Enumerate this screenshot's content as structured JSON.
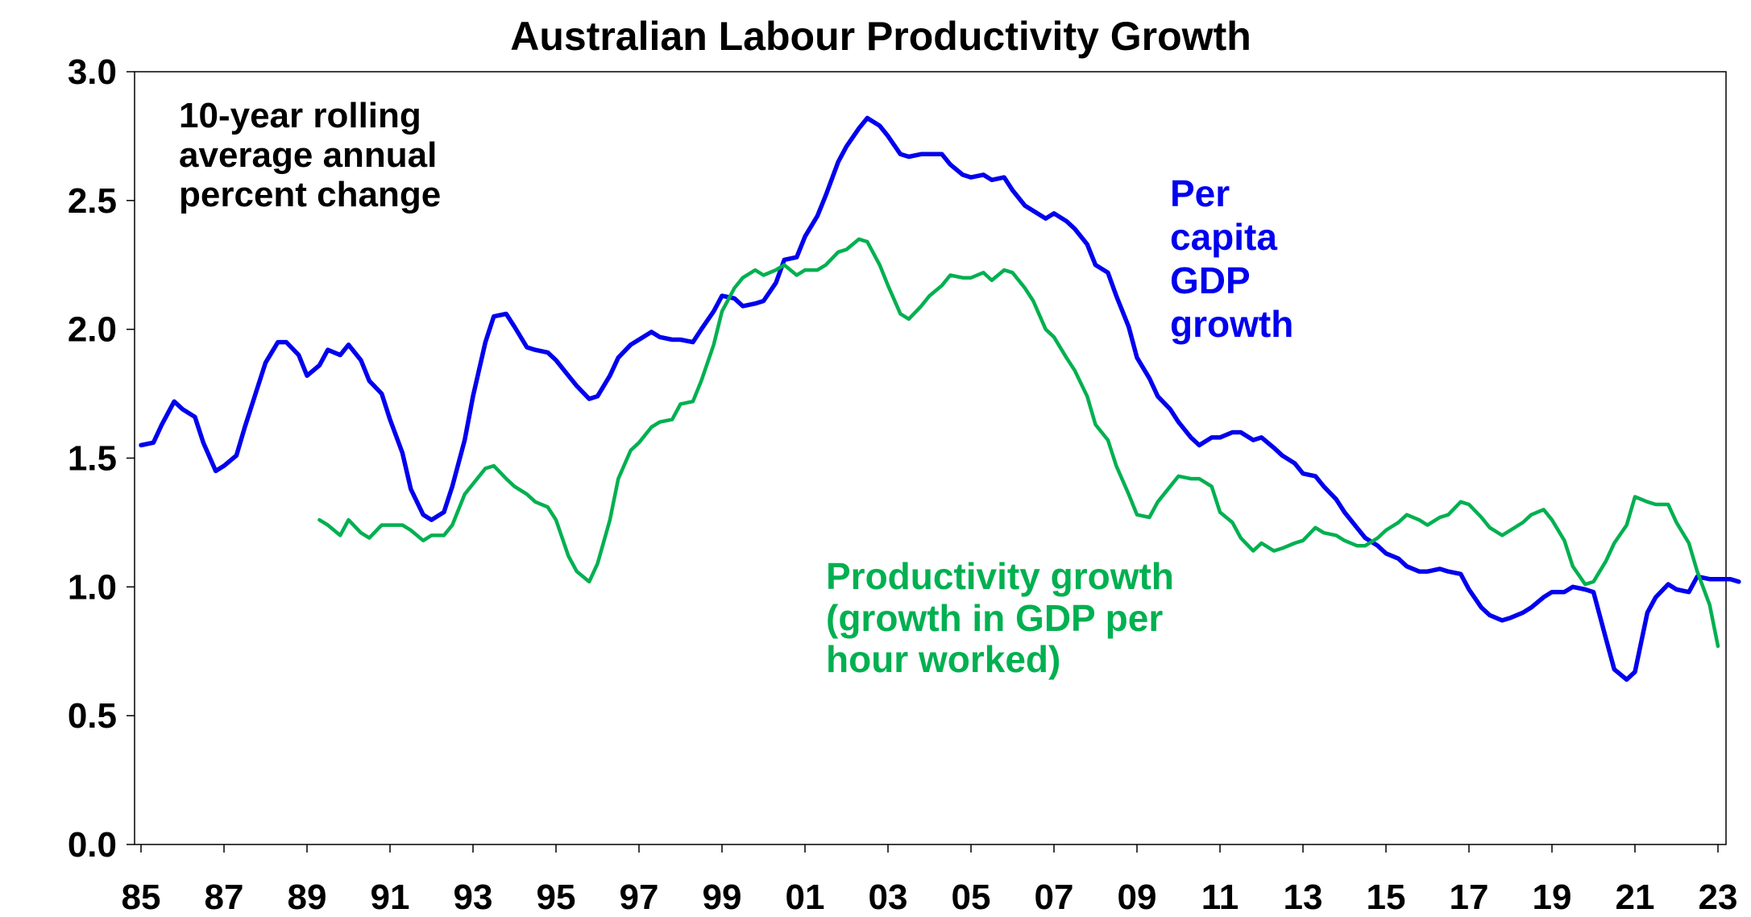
{
  "chart_data": {
    "type": "line",
    "title": "Australian Labour Productivity Growth",
    "annotation": [
      "10-year rolling",
      "average annual",
      "percent change"
    ],
    "xlabel": "",
    "ylabel": "",
    "xlim": [
      1985,
      2024.3
    ],
    "ylim": [
      0,
      3.0
    ],
    "x_ticks": [
      1985,
      1987,
      1989,
      1991,
      1993,
      1995,
      1997,
      1999,
      2001,
      2003,
      2005,
      2007,
      2009,
      2011,
      2013,
      2015,
      2017,
      2019,
      2021,
      2023
    ],
    "x_tick_labels": [
      "85",
      "87",
      "89",
      "91",
      "93",
      "95",
      "97",
      "99",
      "01",
      "03",
      "05",
      "07",
      "09",
      "11",
      "13",
      "15",
      "17",
      "19",
      "21",
      "23"
    ],
    "y_ticks": [
      0,
      0.5,
      1.0,
      1.5,
      2.0,
      2.5,
      3.0
    ],
    "y_tick_labels": [
      "0.0",
      "0.5",
      "1.0",
      "1.5",
      "2.0",
      "2.5",
      "3.0"
    ],
    "grid": false,
    "legend": "none",
    "series": [
      {
        "name": "Per capita GDP growth",
        "label_lines": [
          "Per",
          "capita",
          "GDP",
          "growth"
        ],
        "color": "#0000EE",
        "points": [
          [
            1985.0,
            1.55
          ],
          [
            1985.3,
            1.56
          ],
          [
            1985.5,
            1.63
          ],
          [
            1985.8,
            1.72
          ],
          [
            1986.0,
            1.69
          ],
          [
            1986.3,
            1.66
          ],
          [
            1986.5,
            1.56
          ],
          [
            1986.8,
            1.45
          ],
          [
            1987.0,
            1.47
          ],
          [
            1987.3,
            1.51
          ],
          [
            1987.5,
            1.62
          ],
          [
            1987.8,
            1.77
          ],
          [
            1988.0,
            1.87
          ],
          [
            1988.3,
            1.95
          ],
          [
            1988.5,
            1.95
          ],
          [
            1988.8,
            1.9
          ],
          [
            1989.0,
            1.82
          ],
          [
            1989.3,
            1.86
          ],
          [
            1989.5,
            1.92
          ],
          [
            1989.8,
            1.9
          ],
          [
            1990.0,
            1.94
          ],
          [
            1990.3,
            1.88
          ],
          [
            1990.5,
            1.8
          ],
          [
            1990.8,
            1.75
          ],
          [
            1991.0,
            1.65
          ],
          [
            1991.3,
            1.52
          ],
          [
            1991.5,
            1.38
          ],
          [
            1991.8,
            1.28
          ],
          [
            1992.0,
            1.26
          ],
          [
            1992.3,
            1.29
          ],
          [
            1992.5,
            1.39
          ],
          [
            1992.8,
            1.57
          ],
          [
            1993.0,
            1.74
          ],
          [
            1993.3,
            1.95
          ],
          [
            1993.5,
            2.05
          ],
          [
            1993.8,
            2.06
          ],
          [
            1994.0,
            2.01
          ],
          [
            1994.3,
            1.93
          ],
          [
            1994.5,
            1.92
          ],
          [
            1994.8,
            1.91
          ],
          [
            1995.0,
            1.88
          ],
          [
            1995.3,
            1.82
          ],
          [
            1995.5,
            1.78
          ],
          [
            1995.8,
            1.73
          ],
          [
            1996.0,
            1.74
          ],
          [
            1996.3,
            1.82
          ],
          [
            1996.5,
            1.89
          ],
          [
            1996.8,
            1.94
          ],
          [
            1997.0,
            1.96
          ],
          [
            1997.3,
            1.99
          ],
          [
            1997.5,
            1.97
          ],
          [
            1997.8,
            1.96
          ],
          [
            1998.0,
            1.96
          ],
          [
            1998.3,
            1.95
          ],
          [
            1998.5,
            2.0
          ],
          [
            1998.8,
            2.07
          ],
          [
            1999.0,
            2.13
          ],
          [
            1999.3,
            2.12
          ],
          [
            1999.5,
            2.09
          ],
          [
            1999.8,
            2.1
          ],
          [
            2000.0,
            2.11
          ],
          [
            2000.3,
            2.18
          ],
          [
            2000.5,
            2.27
          ],
          [
            2000.8,
            2.28
          ],
          [
            2001.0,
            2.36
          ],
          [
            2001.3,
            2.44
          ],
          [
            2001.5,
            2.52
          ],
          [
            2001.8,
            2.65
          ],
          [
            2002.0,
            2.71
          ],
          [
            2002.3,
            2.78
          ],
          [
            2002.5,
            2.82
          ],
          [
            2002.8,
            2.79
          ],
          [
            2003.0,
            2.75
          ],
          [
            2003.3,
            2.68
          ],
          [
            2003.5,
            2.67
          ],
          [
            2003.8,
            2.68
          ],
          [
            2004.0,
            2.68
          ],
          [
            2004.3,
            2.68
          ],
          [
            2004.5,
            2.64
          ],
          [
            2004.8,
            2.6
          ],
          [
            2005.0,
            2.59
          ],
          [
            2005.3,
            2.6
          ],
          [
            2005.5,
            2.58
          ],
          [
            2005.8,
            2.59
          ],
          [
            2006.0,
            2.54
          ],
          [
            2006.3,
            2.48
          ],
          [
            2006.5,
            2.46
          ],
          [
            2006.8,
            2.43
          ],
          [
            2007.0,
            2.45
          ],
          [
            2007.3,
            2.42
          ],
          [
            2007.5,
            2.39
          ],
          [
            2007.8,
            2.33
          ],
          [
            2008.0,
            2.25
          ],
          [
            2008.3,
            2.22
          ],
          [
            2008.5,
            2.13
          ],
          [
            2008.8,
            2.01
          ],
          [
            2009.0,
            1.89
          ],
          [
            2009.3,
            1.81
          ],
          [
            2009.5,
            1.74
          ],
          [
            2009.8,
            1.69
          ],
          [
            2010.0,
            1.64
          ],
          [
            2010.3,
            1.58
          ],
          [
            2010.5,
            1.55
          ],
          [
            2010.8,
            1.58
          ],
          [
            2011.0,
            1.58
          ],
          [
            2011.3,
            1.6
          ],
          [
            2011.5,
            1.6
          ],
          [
            2011.8,
            1.57
          ],
          [
            2012.0,
            1.58
          ],
          [
            2012.3,
            1.54
          ],
          [
            2012.5,
            1.51
          ],
          [
            2012.8,
            1.48
          ],
          [
            2013.0,
            1.44
          ],
          [
            2013.3,
            1.43
          ],
          [
            2013.5,
            1.39
          ],
          [
            2013.8,
            1.34
          ],
          [
            2014.0,
            1.29
          ],
          [
            2014.3,
            1.23
          ],
          [
            2014.5,
            1.19
          ],
          [
            2014.8,
            1.16
          ],
          [
            2015.0,
            1.13
          ],
          [
            2015.3,
            1.11
          ],
          [
            2015.5,
            1.08
          ],
          [
            2015.8,
            1.06
          ],
          [
            2016.0,
            1.06
          ],
          [
            2016.3,
            1.07
          ],
          [
            2016.5,
            1.06
          ],
          [
            2016.8,
            1.05
          ],
          [
            2017.0,
            0.99
          ],
          [
            2017.3,
            0.92
          ],
          [
            2017.5,
            0.89
          ],
          [
            2017.8,
            0.87
          ],
          [
            2018.0,
            0.88
          ],
          [
            2018.3,
            0.9
          ],
          [
            2018.5,
            0.92
          ],
          [
            2018.8,
            0.96
          ],
          [
            2019.0,
            0.98
          ],
          [
            2019.3,
            0.98
          ],
          [
            2019.5,
            1.0
          ],
          [
            2019.8,
            0.99
          ],
          [
            2020.0,
            0.98
          ],
          [
            2020.3,
            0.8
          ],
          [
            2020.5,
            0.68
          ],
          [
            2020.8,
            0.64
          ],
          [
            2021.0,
            0.67
          ],
          [
            2021.3,
            0.9
          ],
          [
            2021.5,
            0.96
          ],
          [
            2021.8,
            1.01
          ],
          [
            2022.0,
            0.99
          ],
          [
            2022.3,
            0.98
          ],
          [
            2022.5,
            1.04
          ],
          [
            2022.8,
            1.03
          ],
          [
            2023.0,
            1.03
          ],
          [
            2023.3,
            1.03
          ],
          [
            2023.5,
            1.02
          ]
        ]
      },
      {
        "name": "Productivity growth (growth in GDP per hour worked)",
        "label_lines": [
          "Productivity growth",
          "(growth in GDP per",
          "hour worked)"
        ],
        "color": "#00B050",
        "points": [
          [
            1989.3,
            1.26
          ],
          [
            1989.5,
            1.24
          ],
          [
            1989.8,
            1.2
          ],
          [
            1990.0,
            1.26
          ],
          [
            1990.3,
            1.21
          ],
          [
            1990.5,
            1.19
          ],
          [
            1990.8,
            1.24
          ],
          [
            1991.0,
            1.24
          ],
          [
            1991.3,
            1.24
          ],
          [
            1991.5,
            1.22
          ],
          [
            1991.8,
            1.18
          ],
          [
            1992.0,
            1.2
          ],
          [
            1992.3,
            1.2
          ],
          [
            1992.5,
            1.24
          ],
          [
            1992.8,
            1.36
          ],
          [
            1993.0,
            1.4
          ],
          [
            1993.3,
            1.46
          ],
          [
            1993.5,
            1.47
          ],
          [
            1993.8,
            1.42
          ],
          [
            1994.0,
            1.39
          ],
          [
            1994.3,
            1.36
          ],
          [
            1994.5,
            1.33
          ],
          [
            1994.8,
            1.31
          ],
          [
            1995.0,
            1.26
          ],
          [
            1995.3,
            1.12
          ],
          [
            1995.5,
            1.06
          ],
          [
            1995.8,
            1.02
          ],
          [
            1996.0,
            1.09
          ],
          [
            1996.3,
            1.26
          ],
          [
            1996.5,
            1.42
          ],
          [
            1996.8,
            1.53
          ],
          [
            1997.0,
            1.56
          ],
          [
            1997.3,
            1.62
          ],
          [
            1997.5,
            1.64
          ],
          [
            1997.8,
            1.65
          ],
          [
            1998.0,
            1.71
          ],
          [
            1998.3,
            1.72
          ],
          [
            1998.5,
            1.8
          ],
          [
            1998.8,
            1.94
          ],
          [
            1999.0,
            2.07
          ],
          [
            1999.3,
            2.16
          ],
          [
            1999.5,
            2.2
          ],
          [
            1999.8,
            2.23
          ],
          [
            2000.0,
            2.21
          ],
          [
            2000.3,
            2.23
          ],
          [
            2000.5,
            2.25
          ],
          [
            2000.8,
            2.21
          ],
          [
            2001.0,
            2.23
          ],
          [
            2001.3,
            2.23
          ],
          [
            2001.5,
            2.25
          ],
          [
            2001.8,
            2.3
          ],
          [
            2002.0,
            2.31
          ],
          [
            2002.3,
            2.35
          ],
          [
            2002.5,
            2.34
          ],
          [
            2002.8,
            2.25
          ],
          [
            2003.0,
            2.17
          ],
          [
            2003.3,
            2.06
          ],
          [
            2003.5,
            2.04
          ],
          [
            2003.8,
            2.09
          ],
          [
            2004.0,
            2.13
          ],
          [
            2004.3,
            2.17
          ],
          [
            2004.5,
            2.21
          ],
          [
            2004.8,
            2.2
          ],
          [
            2005.0,
            2.2
          ],
          [
            2005.3,
            2.22
          ],
          [
            2005.5,
            2.19
          ],
          [
            2005.8,
            2.23
          ],
          [
            2006.0,
            2.22
          ],
          [
            2006.3,
            2.16
          ],
          [
            2006.5,
            2.11
          ],
          [
            2006.8,
            2.0
          ],
          [
            2007.0,
            1.97
          ],
          [
            2007.3,
            1.89
          ],
          [
            2007.5,
            1.84
          ],
          [
            2007.8,
            1.74
          ],
          [
            2008.0,
            1.63
          ],
          [
            2008.3,
            1.57
          ],
          [
            2008.5,
            1.47
          ],
          [
            2008.8,
            1.36
          ],
          [
            2009.0,
            1.28
          ],
          [
            2009.3,
            1.27
          ],
          [
            2009.5,
            1.33
          ],
          [
            2009.8,
            1.39
          ],
          [
            2010.0,
            1.43
          ],
          [
            2010.3,
            1.42
          ],
          [
            2010.5,
            1.42
          ],
          [
            2010.8,
            1.39
          ],
          [
            2011.0,
            1.29
          ],
          [
            2011.3,
            1.25
          ],
          [
            2011.5,
            1.19
          ],
          [
            2011.8,
            1.14
          ],
          [
            2012.0,
            1.17
          ],
          [
            2012.3,
            1.14
          ],
          [
            2012.5,
            1.15
          ],
          [
            2012.8,
            1.17
          ],
          [
            2013.0,
            1.18
          ],
          [
            2013.3,
            1.23
          ],
          [
            2013.5,
            1.21
          ],
          [
            2013.8,
            1.2
          ],
          [
            2014.0,
            1.18
          ],
          [
            2014.3,
            1.16
          ],
          [
            2014.5,
            1.16
          ],
          [
            2014.8,
            1.19
          ],
          [
            2015.0,
            1.22
          ],
          [
            2015.3,
            1.25
          ],
          [
            2015.5,
            1.28
          ],
          [
            2015.8,
            1.26
          ],
          [
            2016.0,
            1.24
          ],
          [
            2016.3,
            1.27
          ],
          [
            2016.5,
            1.28
          ],
          [
            2016.8,
            1.33
          ],
          [
            2017.0,
            1.32
          ],
          [
            2017.3,
            1.27
          ],
          [
            2017.5,
            1.23
          ],
          [
            2017.8,
            1.2
          ],
          [
            2018.0,
            1.22
          ],
          [
            2018.3,
            1.25
          ],
          [
            2018.5,
            1.28
          ],
          [
            2018.8,
            1.3
          ],
          [
            2019.0,
            1.26
          ],
          [
            2019.3,
            1.18
          ],
          [
            2019.5,
            1.08
          ],
          [
            2019.8,
            1.01
          ],
          [
            2020.0,
            1.02
          ],
          [
            2020.3,
            1.1
          ],
          [
            2020.5,
            1.17
          ],
          [
            2020.8,
            1.24
          ],
          [
            2021.0,
            1.35
          ],
          [
            2021.3,
            1.33
          ],
          [
            2021.5,
            1.32
          ],
          [
            2021.8,
            1.32
          ],
          [
            2022.0,
            1.25
          ],
          [
            2022.3,
            1.17
          ],
          [
            2022.5,
            1.06
          ],
          [
            2022.8,
            0.93
          ],
          [
            2023.0,
            0.77
          ]
        ]
      }
    ]
  }
}
